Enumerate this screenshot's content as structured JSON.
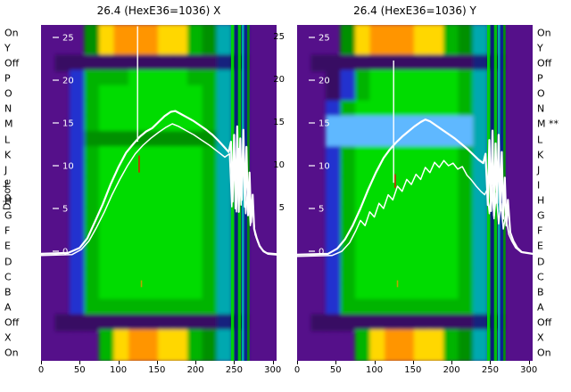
{
  "figure": {
    "ylabel": "Dipole",
    "row_labels": [
      "On",
      "Y",
      "Off",
      "P",
      "O",
      "N",
      "M",
      "L",
      "K",
      "J",
      "I",
      "H",
      "G",
      "F",
      "E",
      "D",
      "C",
      "B",
      "A",
      "Off",
      "X",
      "On"
    ],
    "right_row_labels": [
      "On",
      "Y",
      "Off",
      "P",
      "O",
      "N",
      "M **",
      "L",
      "K",
      "J",
      "I",
      "H",
      "G",
      "F",
      "E",
      "D",
      "C",
      "B",
      "A",
      "Off",
      "X",
      "On"
    ],
    "gap_tick_labels": [
      25,
      20,
      15,
      10,
      5
    ]
  },
  "palette": {
    "p": "#55108a",
    "d": "#390a63",
    "b": "#2130cf",
    "e": "#009000",
    "g": "#00b400",
    "G": "#00dc00",
    "t": "#00a8b0",
    "l": "#5fb8ff",
    "y": "#ffd700",
    "o": "#ff9500",
    "n": "#13207e",
    "k": "#060e4a",
    "red": "#d42400",
    "mark_yellow": "#b8a400",
    "trace": "#ffffff",
    "background": "#ffffff"
  },
  "chart_data": [
    {
      "type": "heatmap",
      "title": "26.4 (HexE36=1036) X",
      "x_ticks": [
        0,
        50,
        100,
        150,
        200,
        250,
        300
      ],
      "x_range": [
        0,
        305
      ],
      "inner_y_ticks": [
        25,
        20,
        15,
        10,
        5,
        0
      ],
      "matrix": [
        "pppeyoooyygetnpp",
        "pppeyoooyygetnpp",
        "pdddddddddddnkpp",
        "ppbgggGGGGggtnpp",
        "ppbgGGGGGGGgtnpp",
        "ppbgGGGGGGGgtnpp",
        "ppbgGGGGGGGgtnpp",
        "ppbeeeeeeeeetnpp",
        "ppbgGGGGGGGgtnpp",
        "ppbgGGGGGGGgtnpp",
        "ppbgGGGGGGGgtnpp",
        "ppbgGGGGGGGgtnpp",
        "ppbgGGGGGGGgtnpp",
        "ppbgGGGGGGGgtnpp",
        "ppbgGGGGGGGgtnpp",
        "ppbgGGGGGGGgtnpp",
        "ppbgGGGGGGGgtnpp",
        "ppbgGGGGGGGgtnpp",
        "ppbgggggggggtnpp",
        "pdddddddddddnkpp",
        "ppppgyooyygetnpp",
        "ppppgyooyygetnpp"
      ],
      "stripes": [
        {
          "x": 246,
          "w": 4,
          "c": "#00d800"
        },
        {
          "x": 251,
          "w": 4,
          "c": "#0a1c7a"
        },
        {
          "x": 255,
          "w": 4,
          "c": "#00cc00"
        },
        {
          "x": 260,
          "w": 3,
          "c": "#00b4b4"
        },
        {
          "x": 263,
          "w": 4,
          "c": "#0c2490"
        },
        {
          "x": 267,
          "w": 3,
          "c": "#009900"
        }
      ],
      "spike": {
        "x": 125,
        "v0": 12.8,
        "v1": 26.3
      },
      "red_marks": [
        [
          127,
          9.2,
          11.2
        ]
      ],
      "yellow_marks": [
        [
          130,
          -3.4,
          -4.2
        ]
      ],
      "lines": [
        {
          "width": 2.2,
          "points": [
            [
              0,
              -0.3
            ],
            [
              35,
              -0.2
            ],
            [
              50,
              0.4
            ],
            [
              60,
              1.5
            ],
            [
              70,
              3.5
            ],
            [
              80,
              5.5
            ],
            [
              90,
              7.8
            ],
            [
              100,
              9.8
            ],
            [
              110,
              11.5
            ],
            [
              120,
              12.6
            ],
            [
              128,
              13.4
            ],
            [
              136,
              14
            ],
            [
              144,
              14.4
            ],
            [
              152,
              15.1
            ],
            [
              160,
              15.8
            ],
            [
              168,
              16.3
            ],
            [
              174,
              16.4
            ],
            [
              182,
              16
            ],
            [
              190,
              15.6
            ],
            [
              198,
              15.2
            ],
            [
              206,
              14.7
            ],
            [
              214,
              14.2
            ],
            [
              222,
              13.6
            ],
            [
              230,
              12.9
            ],
            [
              238,
              12.1
            ],
            [
              243,
              11.6
            ],
            [
              246,
              12.8
            ],
            [
              248,
              5.8
            ],
            [
              250,
              13.6
            ],
            [
              252,
              5
            ],
            [
              254,
              14.6
            ],
            [
              256,
              4.6
            ],
            [
              258,
              13.2
            ],
            [
              260,
              6
            ],
            [
              262,
              14.2
            ],
            [
              264,
              5.2
            ],
            [
              266,
              12.2
            ],
            [
              268,
              4.2
            ],
            [
              270,
              9.2
            ],
            [
              272,
              3.4
            ],
            [
              274,
              6.6
            ],
            [
              276,
              2.6
            ],
            [
              279,
              1.6
            ],
            [
              283,
              0.6
            ],
            [
              288,
              0
            ],
            [
              294,
              -0.3
            ],
            [
              305,
              -0.4
            ]
          ]
        },
        {
          "width": 1.5,
          "points": [
            [
              0,
              -0.5
            ],
            [
              40,
              -0.4
            ],
            [
              52,
              0.2
            ],
            [
              62,
              1.2
            ],
            [
              72,
              2.8
            ],
            [
              82,
              4.6
            ],
            [
              92,
              6.6
            ],
            [
              102,
              8.4
            ],
            [
              112,
              10
            ],
            [
              122,
              11.4
            ],
            [
              132,
              12.4
            ],
            [
              142,
              13.2
            ],
            [
              152,
              13.9
            ],
            [
              162,
              14.5
            ],
            [
              170,
              14.9
            ],
            [
              178,
              14.6
            ],
            [
              188,
              14.1
            ],
            [
              198,
              13.6
            ],
            [
              208,
              13
            ],
            [
              218,
              12.4
            ],
            [
              228,
              11.7
            ],
            [
              238,
              11
            ],
            [
              244,
              11.4
            ],
            [
              247,
              5.2
            ],
            [
              250,
              12.4
            ],
            [
              253,
              4.6
            ],
            [
              256,
              12
            ],
            [
              259,
              5.4
            ],
            [
              262,
              11
            ],
            [
              265,
              4.4
            ],
            [
              268,
              8
            ],
            [
              271,
              3
            ],
            [
              274,
              5
            ],
            [
              277,
              2
            ],
            [
              281,
              1
            ],
            [
              286,
              0.2
            ],
            [
              292,
              -0.2
            ],
            [
              305,
              -0.3
            ]
          ]
        }
      ]
    },
    {
      "type": "heatmap",
      "title": "26.4 (HexE36=1036) Y",
      "x_ticks": [
        0,
        50,
        100,
        150,
        200,
        250,
        300
      ],
      "x_range": [
        0,
        305
      ],
      "inner_y_ticks": [
        25,
        20,
        15,
        10,
        5,
        0
      ],
      "matrix": [
        "pppeyoooyygetnpp",
        "pppeyoooyygetnpp",
        "pdddddddddddnkpp",
        "ppdbgGGGGGGgtnpp",
        "ppdbgGGGGGGgtnpp",
        "ppbgGGGGGGGgtnpp",
        "pplllllllllltnpp",
        "pplllllllllltnpp",
        "ppbgGGGGGGGgtnpp",
        "ppbgGGGGGGGgtnpp",
        "ppbgGGGGGGGgtnpp",
        "ppbgGGGGGGGgtnpp",
        "ppbgGGGGGGGgtnpp",
        "ppbgGGGGGGGgtnpp",
        "ppbgGGGGGGGgtnpp",
        "ppbgGGGGGGGgtnpp",
        "ppbgGGGGGGGgtnpp",
        "ppbgGGGGGGGgtnpp",
        "ppbgggggggggtnpp",
        "pdddddddddddnkpp",
        "ppppgyooyygetnpp",
        "ppppgyooyygetnpp"
      ],
      "stripes": [
        {
          "x": 246,
          "w": 4,
          "c": "#00d800"
        },
        {
          "x": 251,
          "w": 4,
          "c": "#0a1c7a"
        },
        {
          "x": 255,
          "w": 4,
          "c": "#00cc00"
        },
        {
          "x": 260,
          "w": 3,
          "c": "#00b4b4"
        },
        {
          "x": 263,
          "w": 4,
          "c": "#0c2490"
        },
        {
          "x": 267,
          "w": 3,
          "c": "#009900"
        }
      ],
      "spike": {
        "x": 125,
        "v0": 8.0,
        "v1": 22.3
      },
      "red_marks": [
        [
          127,
          7.4,
          9.0
        ]
      ],
      "yellow_marks": [
        [
          130,
          -3.4,
          -4.2
        ]
      ],
      "lines": [
        {
          "width": 2.2,
          "points": [
            [
              0,
              -0.4
            ],
            [
              40,
              -0.3
            ],
            [
              52,
              0.3
            ],
            [
              62,
              1.4
            ],
            [
              72,
              3
            ],
            [
              82,
              5
            ],
            [
              92,
              7.2
            ],
            [
              102,
              9.2
            ],
            [
              112,
              10.9
            ],
            [
              120,
              11.9
            ],
            [
              128,
              12.7
            ],
            [
              136,
              13.4
            ],
            [
              144,
              14
            ],
            [
              152,
              14.6
            ],
            [
              160,
              15.1
            ],
            [
              166,
              15.4
            ],
            [
              172,
              15.2
            ],
            [
              180,
              14.7
            ],
            [
              188,
              14.2
            ],
            [
              196,
              13.7
            ],
            [
              204,
              13.2
            ],
            [
              212,
              12.6
            ],
            [
              220,
              12
            ],
            [
              228,
              11.3
            ],
            [
              235,
              10.7
            ],
            [
              241,
              10.3
            ],
            [
              244,
              11.4
            ],
            [
              247,
              5.4
            ],
            [
              249,
              13
            ],
            [
              251,
              4.7
            ],
            [
              253,
              14.1
            ],
            [
              255,
              4.2
            ],
            [
              257,
              12.6
            ],
            [
              259,
              5.6
            ],
            [
              261,
              13.6
            ],
            [
              263,
              4.8
            ],
            [
              265,
              11.6
            ],
            [
              267,
              3.8
            ],
            [
              269,
              8.6
            ],
            [
              271,
              3
            ],
            [
              273,
              6
            ],
            [
              276,
              2.2
            ],
            [
              280,
              1.2
            ],
            [
              285,
              0.4
            ],
            [
              291,
              -0.1
            ],
            [
              305,
              -0.3
            ]
          ]
        },
        {
          "width": 1.5,
          "points": [
            [
              0,
              -0.6
            ],
            [
              45,
              -0.5
            ],
            [
              58,
              0
            ],
            [
              68,
              1
            ],
            [
              76,
              2.4
            ],
            [
              82,
              3.6
            ],
            [
              88,
              3
            ],
            [
              94,
              4.6
            ],
            [
              100,
              4
            ],
            [
              106,
              5.6
            ],
            [
              112,
              5
            ],
            [
              118,
              6.6
            ],
            [
              124,
              6
            ],
            [
              130,
              7.6
            ],
            [
              136,
              7
            ],
            [
              142,
              8.4
            ],
            [
              148,
              7.8
            ],
            [
              154,
              9
            ],
            [
              160,
              8.4
            ],
            [
              166,
              9.8
            ],
            [
              172,
              9.2
            ],
            [
              178,
              10.4
            ],
            [
              184,
              9.8
            ],
            [
              190,
              10.6
            ],
            [
              196,
              10
            ],
            [
              202,
              10.3
            ],
            [
              208,
              9.6
            ],
            [
              214,
              9.9
            ],
            [
              220,
              8.9
            ],
            [
              226,
              8.3
            ],
            [
              232,
              7.6
            ],
            [
              238,
              7
            ],
            [
              243,
              6.6
            ],
            [
              246,
              7.2
            ],
            [
              249,
              4.4
            ],
            [
              252,
              7.6
            ],
            [
              255,
              3.8
            ],
            [
              258,
              6.8
            ],
            [
              261,
              3.2
            ],
            [
              264,
              5.6
            ],
            [
              267,
              2.6
            ],
            [
              270,
              4.2
            ],
            [
              274,
              2
            ],
            [
              278,
              1.2
            ],
            [
              283,
              0.4
            ],
            [
              290,
              -0.1
            ],
            [
              305,
              -0.3
            ]
          ]
        }
      ]
    }
  ]
}
